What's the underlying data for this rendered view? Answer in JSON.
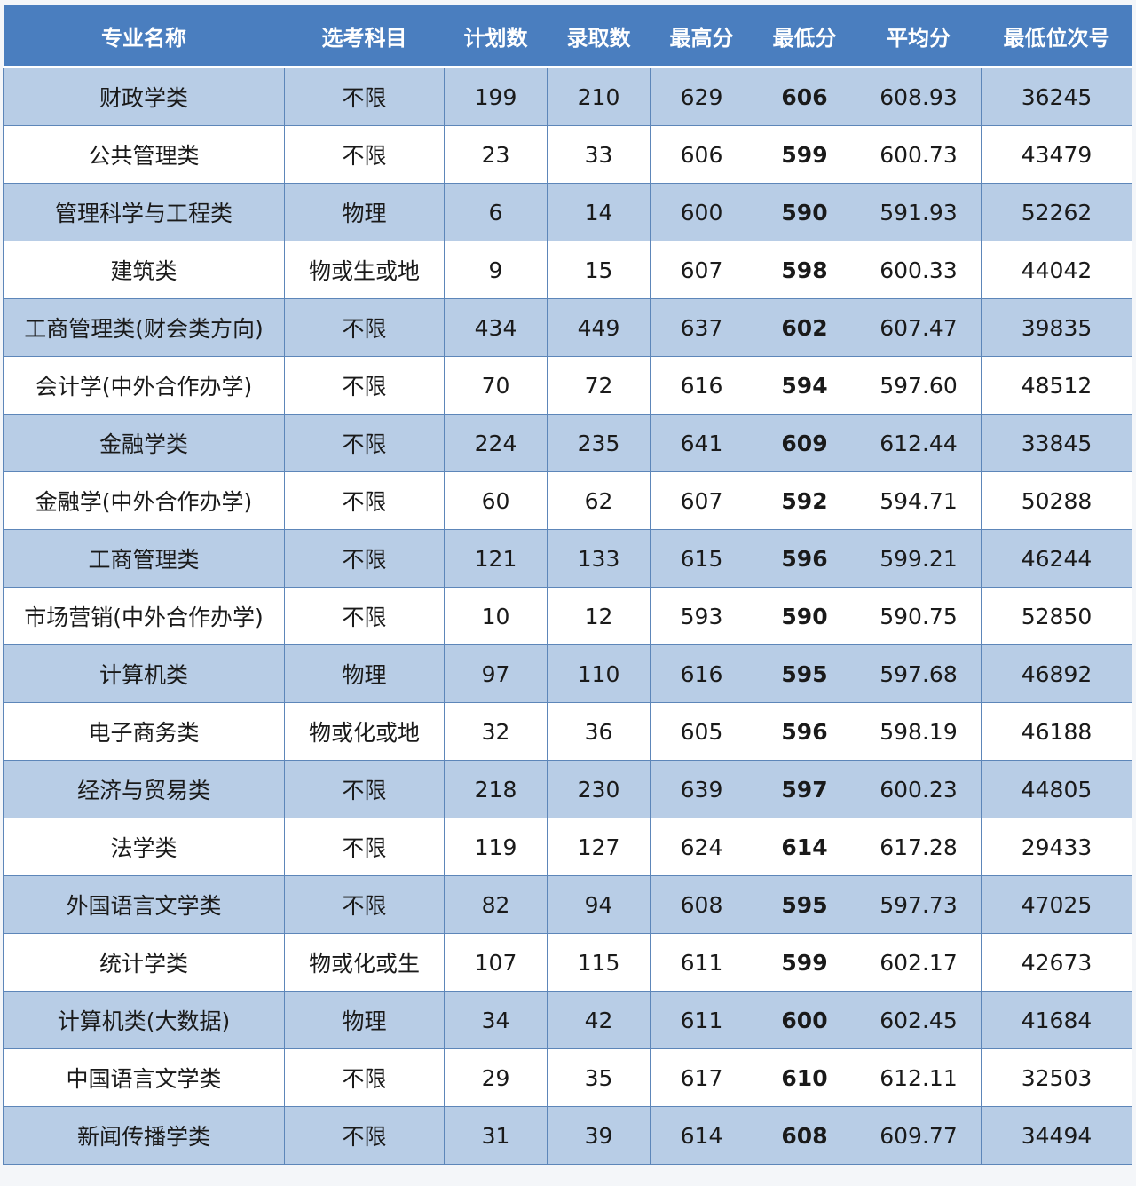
{
  "table": {
    "headers": [
      "专业名称",
      "选考科目",
      "计划数",
      "录取数",
      "最高分",
      "最低分",
      "平均分",
      "最低位次号"
    ],
    "rows": [
      [
        "财政学类",
        "不限",
        "199",
        "210",
        "629",
        "606",
        "608.93",
        "36245"
      ],
      [
        "公共管理类",
        "不限",
        "23",
        "33",
        "606",
        "599",
        "600.73",
        "43479"
      ],
      [
        "管理科学与工程类",
        "物理",
        "6",
        "14",
        "600",
        "590",
        "591.93",
        "52262"
      ],
      [
        "建筑类",
        "物或生或地",
        "9",
        "15",
        "607",
        "598",
        "600.33",
        "44042"
      ],
      [
        "工商管理类(财会类方向)",
        "不限",
        "434",
        "449",
        "637",
        "602",
        "607.47",
        "39835"
      ],
      [
        "会计学(中外合作办学)",
        "不限",
        "70",
        "72",
        "616",
        "594",
        "597.60",
        "48512"
      ],
      [
        "金融学类",
        "不限",
        "224",
        "235",
        "641",
        "609",
        "612.44",
        "33845"
      ],
      [
        "金融学(中外合作办学)",
        "不限",
        "60",
        "62",
        "607",
        "592",
        "594.71",
        "50288"
      ],
      [
        "工商管理类",
        "不限",
        "121",
        "133",
        "615",
        "596",
        "599.21",
        "46244"
      ],
      [
        "市场营销(中外合作办学)",
        "不限",
        "10",
        "12",
        "593",
        "590",
        "590.75",
        "52850"
      ],
      [
        "计算机类",
        "物理",
        "97",
        "110",
        "616",
        "595",
        "597.68",
        "46892"
      ],
      [
        "电子商务类",
        "物或化或地",
        "32",
        "36",
        "605",
        "596",
        "598.19",
        "46188"
      ],
      [
        "经济与贸易类",
        "不限",
        "218",
        "230",
        "639",
        "597",
        "600.23",
        "44805"
      ],
      [
        "法学类",
        "不限",
        "119",
        "127",
        "624",
        "614",
        "617.28",
        "29433"
      ],
      [
        "外国语言文学类",
        "不限",
        "82",
        "94",
        "608",
        "595",
        "597.73",
        "47025"
      ],
      [
        "统计学类",
        "物或化或生",
        "107",
        "115",
        "611",
        "599",
        "602.17",
        "42673"
      ],
      [
        "计算机类(大数据)",
        "物理",
        "34",
        "42",
        "611",
        "600",
        "602.45",
        "41684"
      ],
      [
        "中国语言文学类",
        "不限",
        "29",
        "35",
        "617",
        "610",
        "612.11",
        "32503"
      ],
      [
        "新闻传播学类",
        "不限",
        "31",
        "39",
        "614",
        "608",
        "609.77",
        "34494"
      ]
    ],
    "bold_column": 5
  },
  "colors": {
    "header_bg": "#4a7ebf",
    "row_alt": "#b8cde6",
    "row": "#ffffff",
    "border": "#5d86b9"
  }
}
